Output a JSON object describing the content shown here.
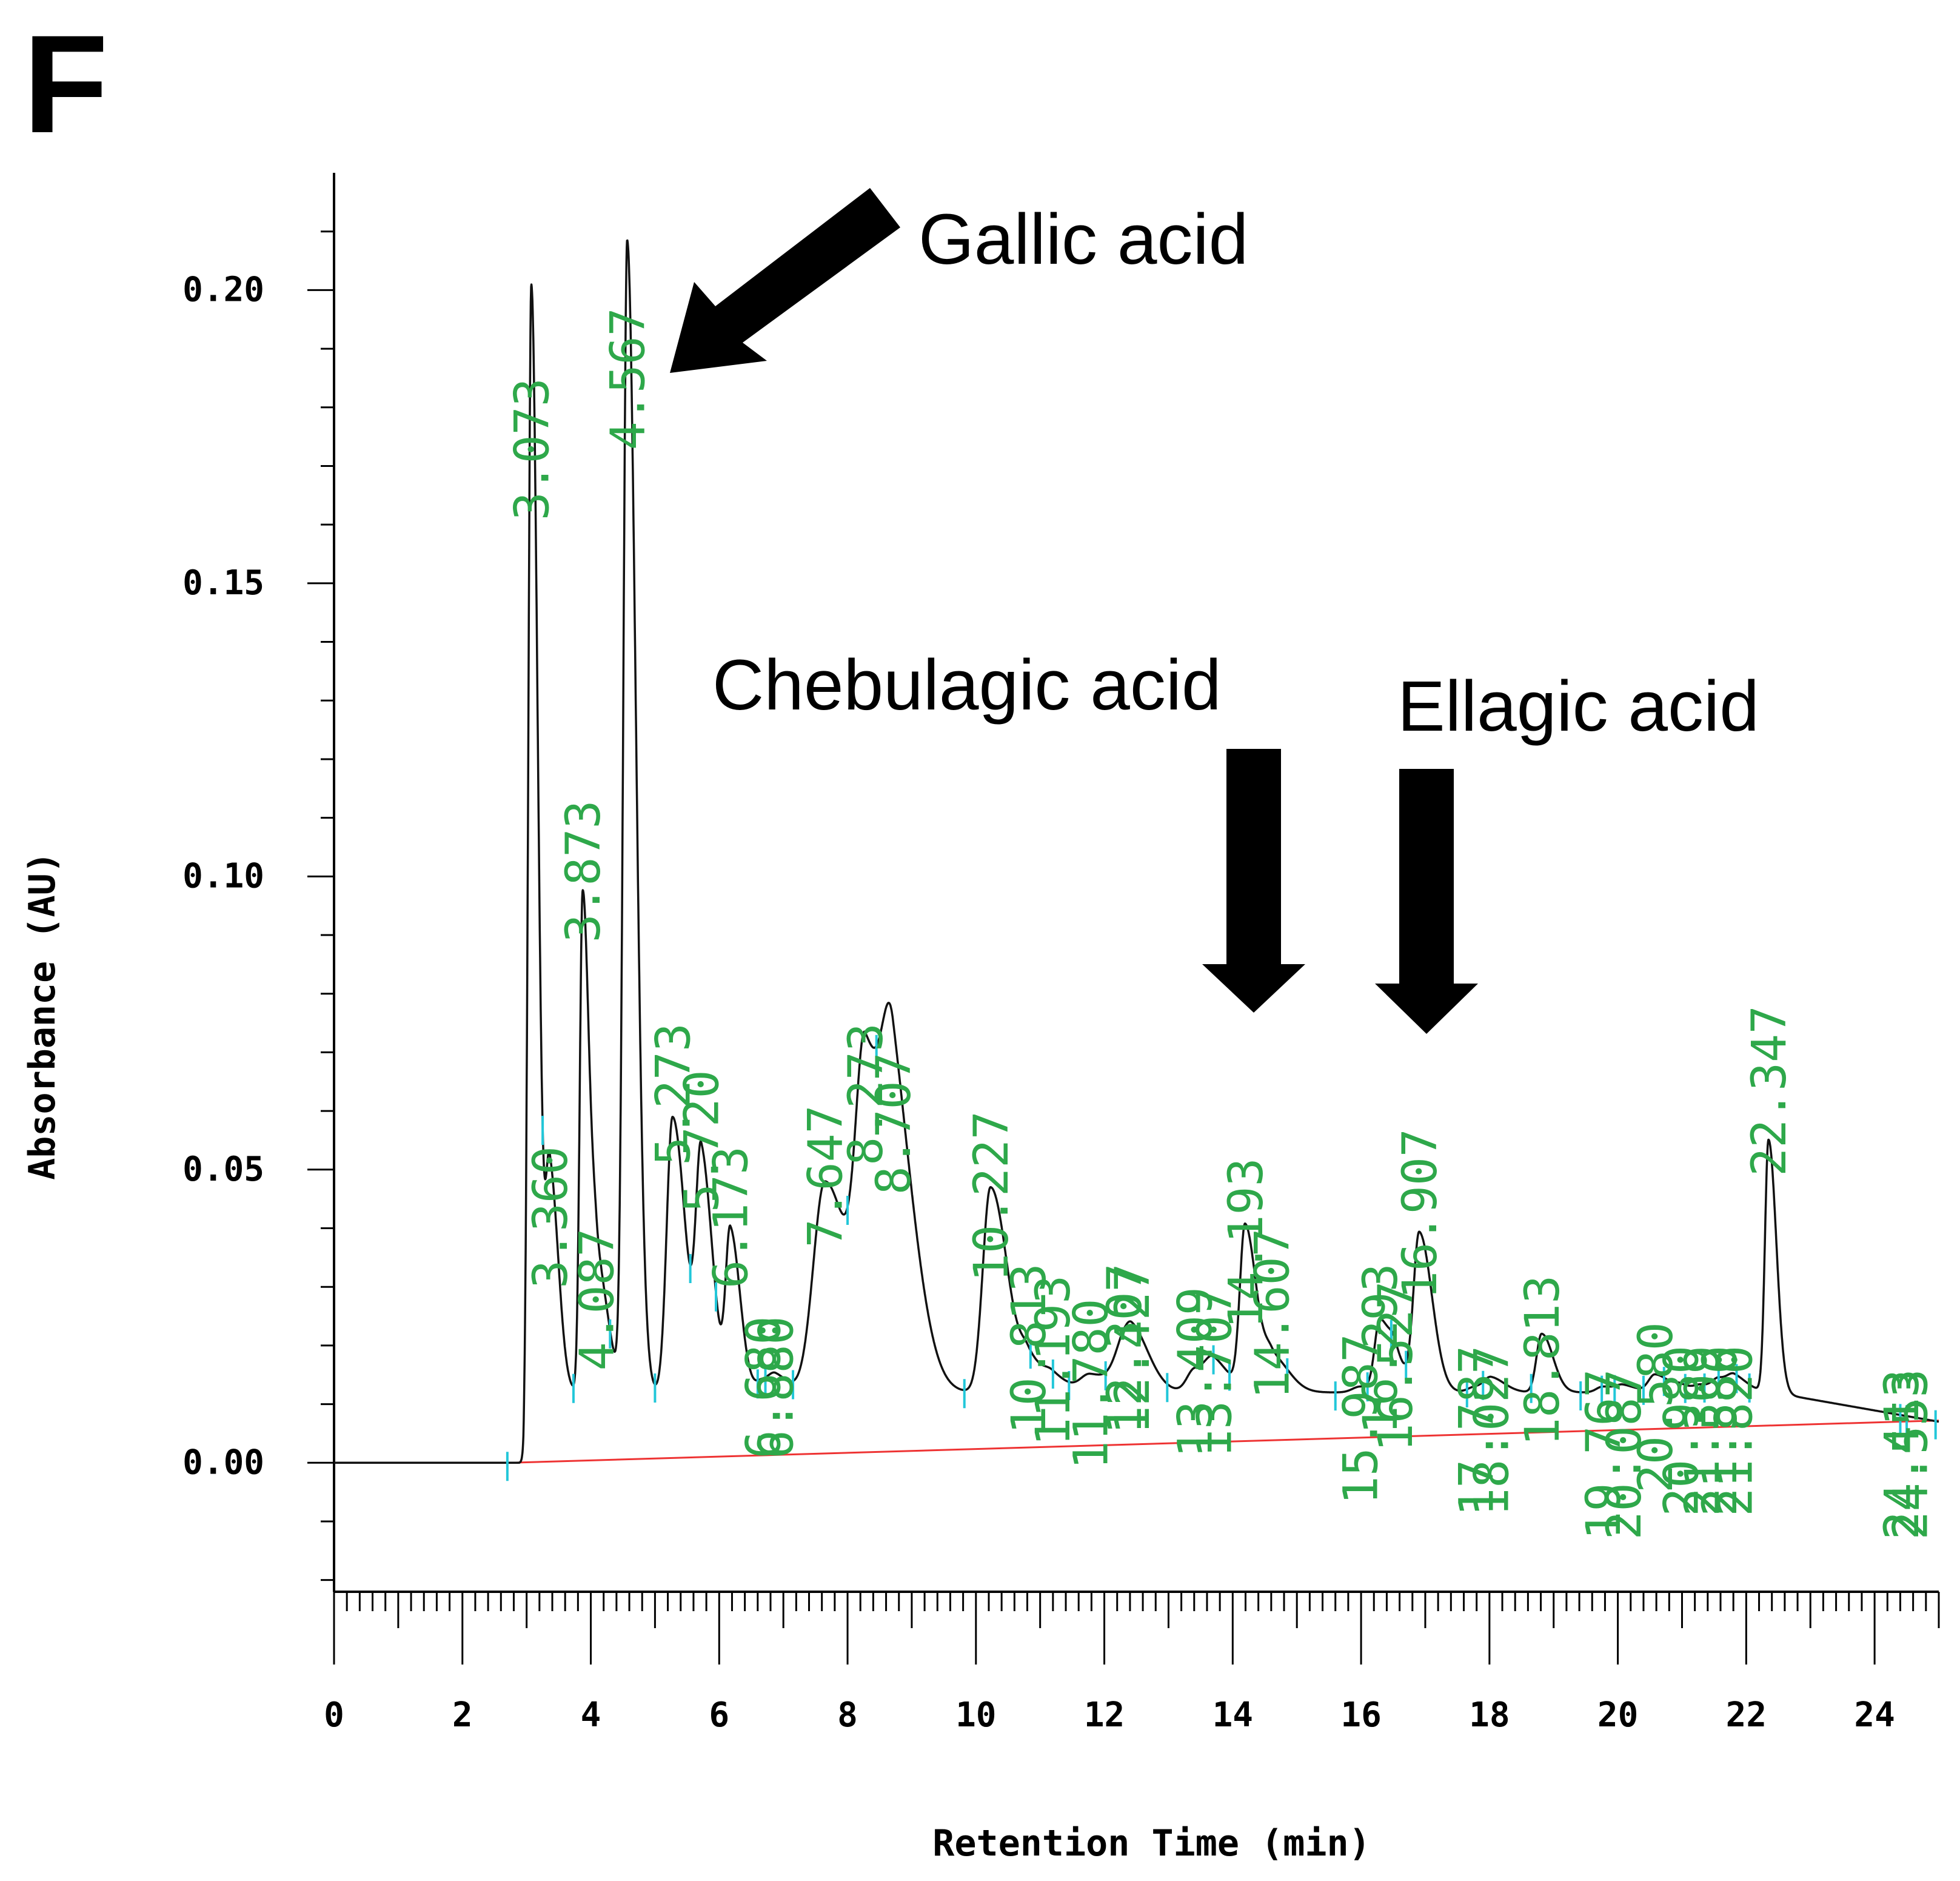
{
  "panel_label": "F",
  "chart_data": {
    "type": "line",
    "title": "",
    "xlabel": "Retention Time (min)",
    "ylabel": "Absorbance (AU)",
    "xlim": [
      0,
      25
    ],
    "ylim": [
      -0.022,
      0.22
    ],
    "x_ticks": [
      0,
      2,
      4,
      6,
      8,
      10,
      12,
      14,
      16,
      18,
      20,
      22,
      24
    ],
    "x_tick_labels": [
      "0",
      "2",
      "4",
      "6",
      "8",
      "10",
      "12",
      "14",
      "16",
      "18",
      "20",
      "22",
      "24"
    ],
    "y_ticks": [
      0.0,
      0.05,
      0.1,
      0.15,
      0.2
    ],
    "y_tick_labels": [
      "0.00",
      "0.05",
      "0.10",
      "0.15",
      "0.20"
    ],
    "baseline_level": 0.012,
    "baseline_color": "#ee3333",
    "trace_color": "#111111",
    "peak_label_color": "#2ea84a",
    "marker_color": "#22c7d9",
    "peaks": [
      {
        "rt": 3.073,
        "h": 0.189,
        "w": 0.045,
        "label": "3.073"
      },
      {
        "rt": 3.36,
        "h": 0.038,
        "w": 0.06,
        "label": "3.360"
      },
      {
        "rt": 3.873,
        "h": 0.085,
        "w": 0.045,
        "label": "3.873"
      },
      {
        "rt": 4.087,
        "h": 0.022,
        "w": 0.08,
        "label": "4.087"
      },
      {
        "rt": 4.567,
        "h": 0.196,
        "w": 0.06,
        "label": "4.567"
      },
      {
        "rt": 5.273,
        "h": 0.047,
        "w": 0.09,
        "label": "5.273"
      },
      {
        "rt": 5.72,
        "h": 0.039,
        "w": 0.08,
        "label": "5.720"
      },
      {
        "rt": 6.173,
        "h": 0.027,
        "w": 0.07,
        "label": "6.173"
      },
      {
        "rt": 6.68,
        "h": 0.002,
        "w": 0.1,
        "label": "6.680"
      },
      {
        "rt": 6.88,
        "h": 0.002,
        "w": 0.1,
        "label": "6.880"
      },
      {
        "rt": 7.647,
        "h": 0.036,
        "w": 0.18,
        "label": "7.647"
      },
      {
        "rt": 8.273,
        "h": 0.05,
        "w": 0.14,
        "label": "8.273"
      },
      {
        "rt": 8.707,
        "h": 0.044,
        "w": 0.16,
        "label": "8.707"
      },
      {
        "rt": 10.227,
        "h": 0.035,
        "w": 0.12,
        "label": "10.227"
      },
      {
        "rt": 10.813,
        "h": 0.005,
        "w": 0.12,
        "label": "10.813"
      },
      {
        "rt": 11.193,
        "h": 0.002,
        "w": 0.12,
        "label": "11.193"
      },
      {
        "rt": 11.78,
        "h": 0.003,
        "w": 0.15,
        "label": "11.780"
      },
      {
        "rt": 12.307,
        "h": 0.007,
        "w": 0.15,
        "label": "12.307"
      },
      {
        "rt": 12.427,
        "h": 0.005,
        "w": 0.12,
        "label": "12.427"
      },
      {
        "rt": 13.409,
        "h": 0.004,
        "w": 0.12,
        "label": "13.409"
      },
      {
        "rt": 13.707,
        "h": 0.004,
        "w": 0.12,
        "label": "13.707"
      },
      {
        "rt": 14.193,
        "h": 0.028,
        "w": 0.08,
        "label": "14.193"
      },
      {
        "rt": 14.607,
        "h": 0.006,
        "w": 0.12,
        "label": "14.607"
      },
      {
        "rt": 15.987,
        "h": 0.001,
        "w": 0.12,
        "label": "15.987"
      },
      {
        "rt": 16.293,
        "h": 0.012,
        "w": 0.08,
        "label": "16.293"
      },
      {
        "rt": 16.527,
        "h": 0.004,
        "w": 0.08,
        "label": "16.527"
      },
      {
        "rt": 16.907,
        "h": 0.027,
        "w": 0.09,
        "label": "16.907"
      },
      {
        "rt": 17.787,
        "h": 0.001,
        "w": 0.12,
        "label": "17.787"
      },
      {
        "rt": 18.027,
        "h": 0.002,
        "w": 0.1,
        "label": "18.027"
      },
      {
        "rt": 18.813,
        "h": 0.01,
        "w": 0.08,
        "label": "18.813"
      },
      {
        "rt": 19.767,
        "h": 0.001,
        "w": 0.1,
        "label": "19.767"
      },
      {
        "rt": 20.087,
        "h": 0.001,
        "w": 0.1,
        "label": "20.087"
      },
      {
        "rt": 20.58,
        "h": 0.003,
        "w": 0.1,
        "label": "20.580"
      },
      {
        "rt": 20.98,
        "h": 0.001,
        "w": 0.1,
        "label": "20.980"
      },
      {
        "rt": 21.309,
        "h": 0.001,
        "w": 0.1,
        "label": "21.309"
      },
      {
        "rt": 21.58,
        "h": 0.002,
        "w": 0.1,
        "label": "21.580"
      },
      {
        "rt": 21.82,
        "h": 0.002,
        "w": 0.1,
        "label": "21.820"
      },
      {
        "rt": 22.347,
        "h": 0.043,
        "w": 0.055,
        "label": "22.347"
      },
      {
        "rt": 24.413,
        "h": 0.0,
        "w": 0.1,
        "label": "24.413"
      },
      {
        "rt": 24.553,
        "h": 0.0,
        "w": 0.1,
        "label": "24.553"
      }
    ],
    "annotations": [
      {
        "text": "Gallic acid",
        "target_rt": 4.567,
        "target_au": 0.19
      },
      {
        "text": "Chebulagic acid",
        "target_rt": 14.193,
        "target_au": 0.075
      },
      {
        "text": "Ellagic acid",
        "target_rt": 16.907,
        "target_au": 0.072
      }
    ]
  }
}
